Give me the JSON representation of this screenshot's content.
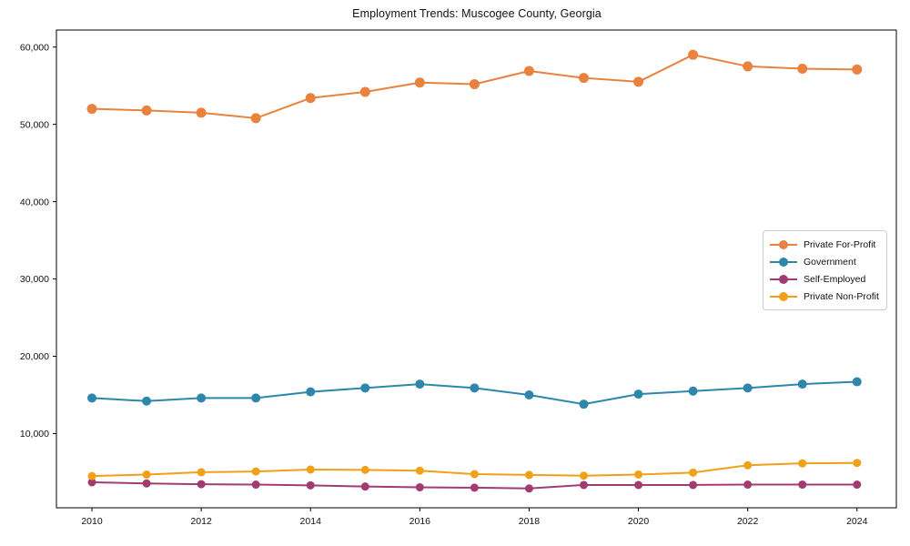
{
  "chart_data": {
    "type": "line",
    "title": "Employment Trends: Muscogee County, Georgia",
    "x": [
      2010,
      2011,
      2012,
      2013,
      2014,
      2015,
      2016,
      2017,
      2018,
      2019,
      2020,
      2021,
      2022,
      2023,
      2024
    ],
    "series": [
      {
        "name": "Private For-Profit",
        "color": "#E9823E",
        "values": [
          52000,
          51800,
          51500,
          50800,
          53400,
          54200,
          55400,
          55200,
          56900,
          56000,
          55500,
          59000,
          57500,
          57200,
          57100
        ]
      },
      {
        "name": "Government",
        "color": "#2E86AB",
        "values": [
          14600,
          14200,
          14600,
          14600,
          15400,
          15900,
          16400,
          15900,
          15000,
          13800,
          15100,
          15500,
          15900,
          16400,
          16700
        ]
      },
      {
        "name": "Self-Employed",
        "color": "#A23B72",
        "values": [
          3700,
          3550,
          3450,
          3400,
          3300,
          3150,
          3050,
          3000,
          2900,
          3350,
          3350,
          3350,
          3400,
          3400,
          3400
        ]
      },
      {
        "name": "Private Non-Profit",
        "color": "#F0A019",
        "values": [
          4500,
          4700,
          5000,
          5100,
          5350,
          5300,
          5200,
          4750,
          4650,
          4550,
          4700,
          4950,
          5900,
          6150,
          6200
        ]
      }
    ],
    "xticks": [
      2010,
      2012,
      2014,
      2016,
      2018,
      2020,
      2022,
      2024
    ],
    "yticks": [
      10000,
      20000,
      30000,
      40000,
      50000,
      60000
    ],
    "ytick_labels": [
      "10,000",
      "20,000",
      "30,000",
      "40,000",
      "50,000",
      "60,000"
    ],
    "xlim": [
      2009.35,
      2024.72
    ],
    "ylim": [
      400,
      62200
    ],
    "grid": false,
    "legend_position": "right",
    "xlabel": "",
    "ylabel": ""
  }
}
